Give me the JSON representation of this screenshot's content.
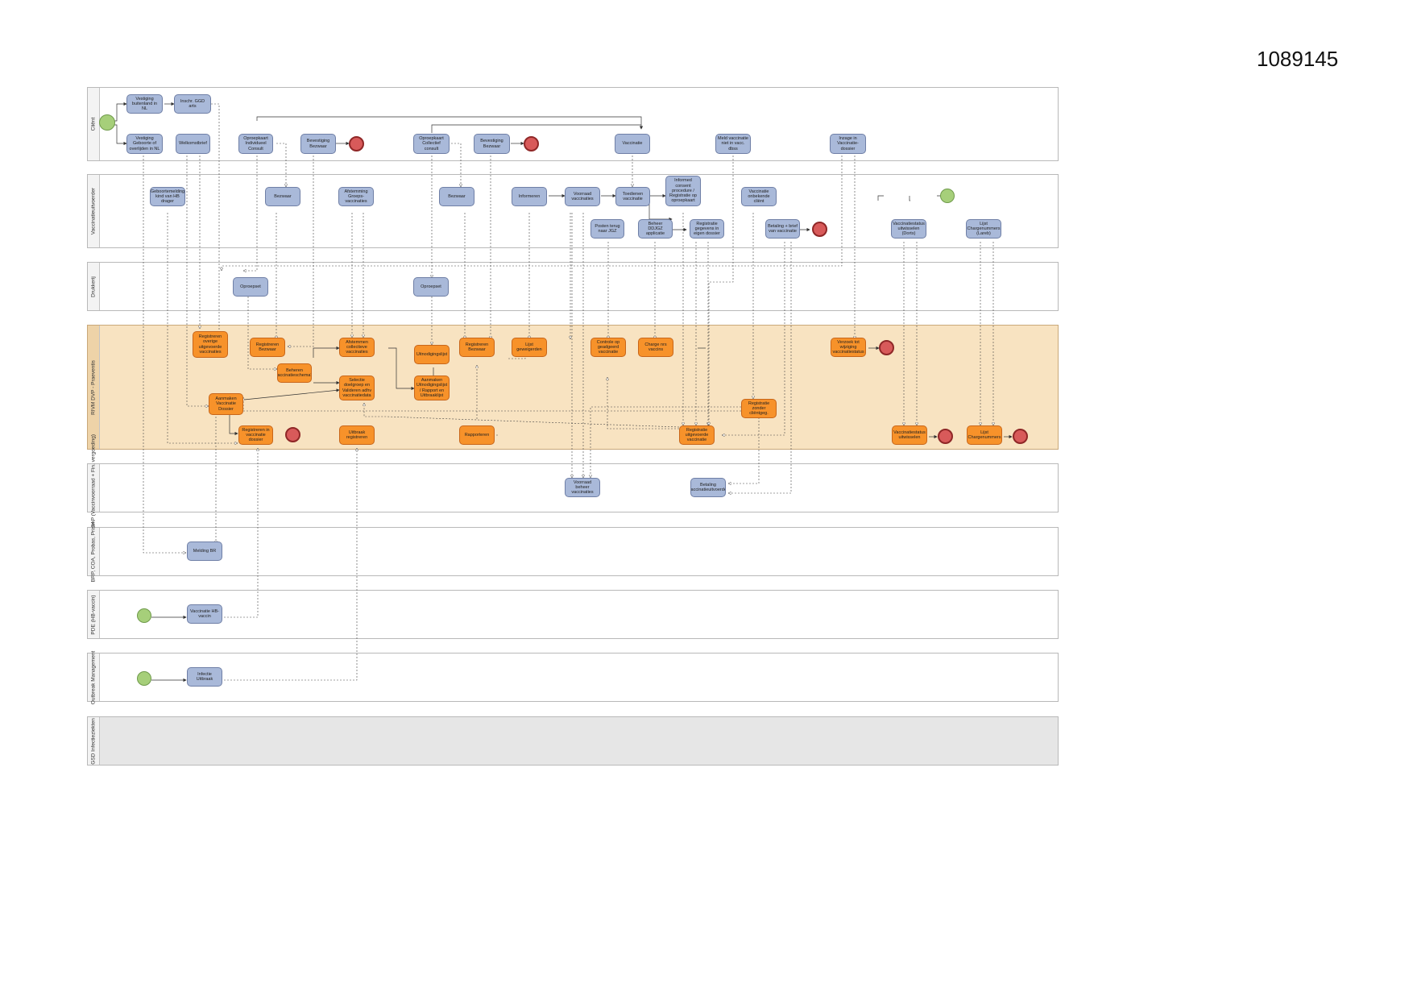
{
  "document_number": "1089145",
  "colors": {
    "task_blue": "#a9b9d9",
    "task_orange": "#f7922a",
    "lane_highlight": "#f8e3c1",
    "start_event": "#a6cf7a",
    "end_event": "#d85a5a"
  },
  "lanes": [
    {
      "id": "client",
      "label": "Cliënt"
    },
    {
      "id": "vacc",
      "label": "Vaccinatieuitvoerder"
    },
    {
      "id": "drukkerij",
      "label": "Drukkerij"
    },
    {
      "id": "rivm",
      "label": "RIVM DVP - Praeventis"
    },
    {
      "id": "sap",
      "label": "RIVM SAP (Vaccinvoorraad + Fin. vergoeding)"
    },
    {
      "id": "brp",
      "label": "BRP, COA, Probas, Prism"
    },
    {
      "id": "pde",
      "label": "PDE (HB-vaccin)"
    },
    {
      "id": "outbreak",
      "label": "Outbreak Management"
    },
    {
      "id": "gsd",
      "label": "GSD Infectieziekten"
    }
  ],
  "tasks": {
    "c1": "Vestiging buitenland in NL",
    "c2": "Inschr. GGD arts",
    "c3": "Vestiging Geboorte of overlijden in NL",
    "c4": "Welkomstbrief",
    "c5": "Oproepkaart Individueel Consult",
    "c6": "Bevestiging Bezwaar",
    "c7": "Oproepkaart Collectief consult",
    "c8": "Bevestiging Bezwaar",
    "c9": "Vaccinatie",
    "c10": "Meld vaccinatie niet in vacc. dbss",
    "c11": "Inzage in Vaccinatie-dossier",
    "v1": "Geboortemelding kind van HB drager",
    "v2": "Bezwaar",
    "v3": "Afstemming Groeps-vaccinaties",
    "v4": "Bezwaar",
    "v5": "Informeren",
    "v6": "Voorraad vaccinaties",
    "v7": "Toedienen vaccinatie",
    "v8": "Informed consent procedure / Registratie op oproepkaart",
    "v9": "Vaccinatie onbekende cliënt",
    "v10": "Posten terug naar JGZ",
    "v11": "Beheer DDJGZ applicatie",
    "v12": "Registratie gegevens in eigen dossier",
    "v13": "Betaling + brief van vaccinatie",
    "v14": "Vaccinatiestatus uitwisselen (Dorts)",
    "v15": "Lijst Chargenummers (Lareb)",
    "d1": "Oproepset",
    "d2": "Oproepset",
    "r1": "Registreren overige uitgevoerde vaccinaties",
    "r2": "Registreren Bezwaar",
    "r3": "Afstemmen collectieve vaccinaties",
    "r4": "Uitnodigingslijst",
    "r5": "Registreren Bezwaar",
    "r6": "Lijst geweigerden",
    "r7": "Controle op geadgeerd vaccinatie",
    "r8": "Charge nrs vaccins",
    "r9": "Verzoek tot wijziging vaccinatiestatus",
    "r10": "Beheren vaccinatieschema's",
    "r11": "Selectie doelgroep en Valideren adhv vaccinatiedata",
    "r12": "Aanmaken Uitnodigingslijst / Rapport en Uitbraaklijst",
    "r13": "Aanmaken Vaccinatie Dossier",
    "r14": "Registratie zonder cliëntgeg.",
    "r15": "Registreren in vaccinatie dossier",
    "r16": "Uitbraak registreren",
    "r17": "Rapporteren",
    "r18": "Registratie uitgevoerde vaccinatie",
    "r19": "Vaccinatiestatus uitwisselen",
    "r20": "Lijst Chargenummers",
    "s1": "Voorraad beheer vaccinaties",
    "s2": "Betaling Vaccinatieuitvoerder",
    "b1": "Melding BR",
    "p1": "Vaccinatie HB-vaccin",
    "o1": "Infectie Uitbraak"
  }
}
